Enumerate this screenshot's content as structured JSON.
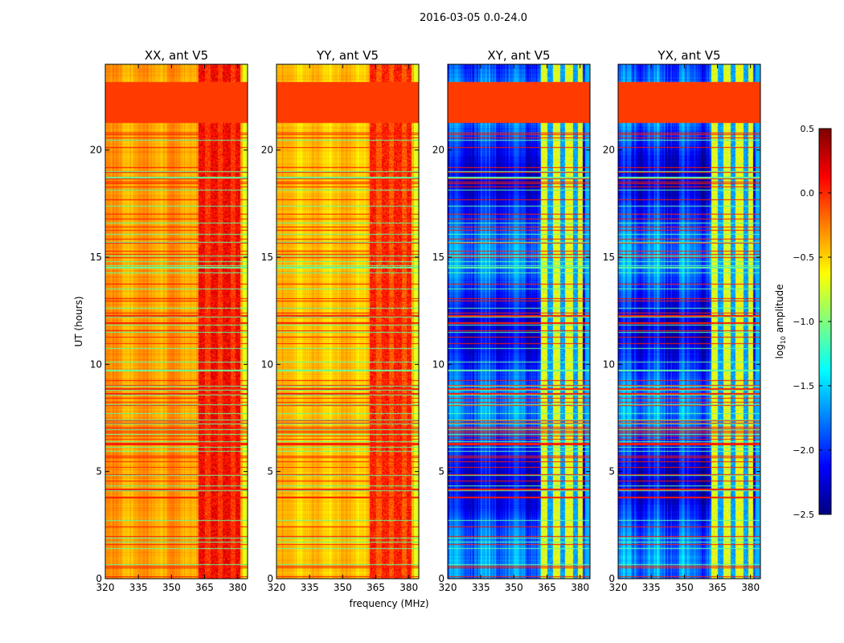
{
  "chart_data": {
    "type": "heatmap",
    "title": "2016-03-05 0.0-24.0",
    "xlabel": "frequency (MHz)",
    "ylabel": "UT (hours)",
    "xlim": [
      320,
      384.5
    ],
    "ylim": [
      0,
      24
    ],
    "xticks": [
      320,
      335,
      350,
      365,
      380
    ],
    "yticks": [
      0,
      5,
      10,
      15,
      20
    ],
    "colorbar": {
      "label": "log10 amplitude",
      "label_main": "log",
      "label_sub": "10",
      "label_rest": " amplitude",
      "range": [
        -2.5,
        0.5
      ],
      "ticks": [
        "0.5",
        "0.0",
        "−0.5",
        "−1.0",
        "−1.5",
        "−2.0",
        "−2.5"
      ],
      "tick_values": [
        0.5,
        0.0,
        -0.5,
        -1.0,
        -1.5,
        -2.0,
        -2.5
      ],
      "colormap": "jet"
    },
    "flagged_interval_hours": [
      21.3,
      23.2
    ],
    "flagged_value": -0.05,
    "rfi_band_mhz": [
      362,
      381
    ],
    "panels": [
      {
        "title": "XX, ant V5",
        "base_level": -0.35,
        "rfi_level": 0.15
      },
      {
        "title": "YY, ant V5",
        "base_level": -0.45,
        "rfi_level": 0.05
      },
      {
        "title": "XY, ant V5",
        "base_level": -1.95,
        "rfi_level": -0.7
      },
      {
        "title": "YX, ant V5",
        "base_level": -1.95,
        "rfi_level": -0.7
      }
    ]
  }
}
